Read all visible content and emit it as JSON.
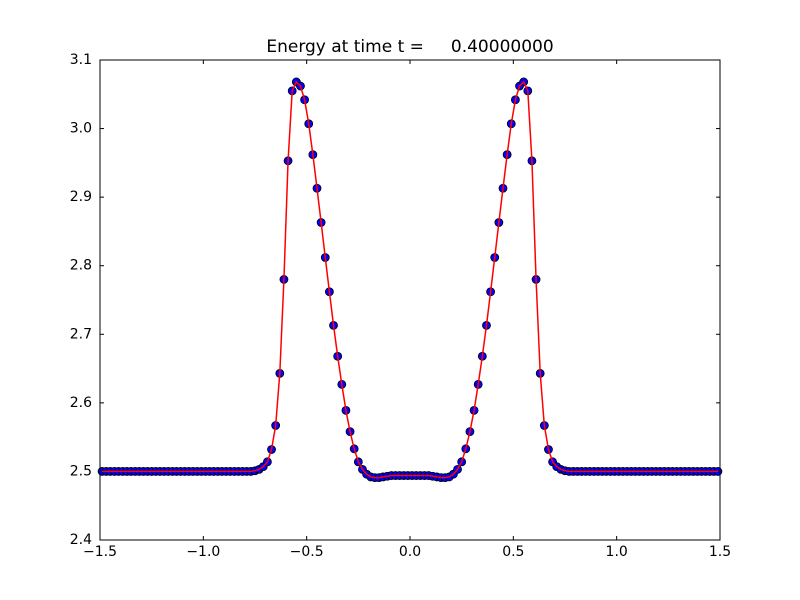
{
  "chart_data": {
    "type": "scatter",
    "title": "Energy at time t =     0.40000000",
    "x": [
      -1.49,
      -1.47,
      -1.45,
      -1.43,
      -1.41,
      -1.39,
      -1.37,
      -1.35,
      -1.33,
      -1.31,
      -1.29,
      -1.27,
      -1.25,
      -1.23,
      -1.21,
      -1.19,
      -1.17,
      -1.15,
      -1.13,
      -1.11,
      -1.09,
      -1.07,
      -1.05,
      -1.03,
      -1.01,
      -0.99,
      -0.97,
      -0.95,
      -0.93,
      -0.91,
      -0.89,
      -0.87,
      -0.85,
      -0.83,
      -0.81,
      -0.79,
      -0.77,
      -0.75,
      -0.73,
      -0.71,
      -0.69,
      -0.67,
      -0.65,
      -0.63,
      -0.61,
      -0.59,
      -0.57,
      -0.55,
      -0.53,
      -0.51,
      -0.49,
      -0.47,
      -0.45,
      -0.43,
      -0.41,
      -0.39,
      -0.37,
      -0.35,
      -0.33,
      -0.31,
      -0.29,
      -0.27,
      -0.25,
      -0.23,
      -0.21,
      -0.19,
      -0.17,
      -0.15,
      -0.13,
      -0.11,
      -0.09,
      -0.07,
      -0.05,
      -0.03,
      -0.01,
      0.01,
      0.03,
      0.05,
      0.07,
      0.09,
      0.11,
      0.13,
      0.15,
      0.17,
      0.19,
      0.21,
      0.23,
      0.25,
      0.27,
      0.29,
      0.31,
      0.33,
      0.35,
      0.37,
      0.39,
      0.41,
      0.43,
      0.45,
      0.47,
      0.49,
      0.51,
      0.53,
      0.55,
      0.57,
      0.59,
      0.61,
      0.63,
      0.65,
      0.67,
      0.69,
      0.71,
      0.73,
      0.75,
      0.77,
      0.79,
      0.81,
      0.83,
      0.85,
      0.87,
      0.89,
      0.91,
      0.93,
      0.95,
      0.97,
      0.99,
      1.01,
      1.03,
      1.05,
      1.07,
      1.09,
      1.11,
      1.13,
      1.15,
      1.17,
      1.19,
      1.21,
      1.23,
      1.25,
      1.27,
      1.29,
      1.31,
      1.33,
      1.35,
      1.37,
      1.39,
      1.41,
      1.43,
      1.45,
      1.47,
      1.49
    ],
    "series": [
      {
        "style": "marker",
        "color": "#0000ff",
        "edgecolor": "#000000",
        "values": [
          2.5,
          2.5,
          2.5,
          2.5,
          2.5,
          2.5,
          2.5,
          2.5,
          2.5,
          2.5,
          2.5,
          2.5,
          2.5,
          2.5,
          2.5,
          2.5,
          2.5,
          2.5,
          2.5,
          2.5,
          2.5,
          2.5,
          2.5,
          2.5,
          2.5,
          2.5,
          2.5,
          2.5,
          2.5,
          2.5,
          2.5,
          2.5,
          2.5,
          2.5,
          2.5,
          2.5,
          2.5,
          2.501,
          2.503,
          2.507,
          2.514,
          2.532,
          2.567,
          2.643,
          2.78,
          2.953,
          3.055,
          3.068,
          3.062,
          3.042,
          3.007,
          2.962,
          2.913,
          2.863,
          2.812,
          2.762,
          2.713,
          2.668,
          2.627,
          2.589,
          2.558,
          2.533,
          2.514,
          2.503,
          2.496,
          2.492,
          2.491,
          2.491,
          2.492,
          2.493,
          2.494,
          2.494,
          2.494,
          2.494,
          2.494,
          2.494,
          2.494,
          2.494,
          2.494,
          2.494,
          2.493,
          2.492,
          2.491,
          2.491,
          2.492,
          2.496,
          2.503,
          2.514,
          2.533,
          2.558,
          2.589,
          2.627,
          2.668,
          2.713,
          2.762,
          2.812,
          2.863,
          2.913,
          2.962,
          3.007,
          3.042,
          3.062,
          3.068,
          3.055,
          2.953,
          2.78,
          2.643,
          2.567,
          2.532,
          2.514,
          2.507,
          2.503,
          2.501,
          2.5,
          2.5,
          2.5,
          2.5,
          2.5,
          2.5,
          2.5,
          2.5,
          2.5,
          2.5,
          2.5,
          2.5,
          2.5,
          2.5,
          2.5,
          2.5,
          2.5,
          2.5,
          2.5,
          2.5,
          2.5,
          2.5,
          2.5,
          2.5,
          2.5,
          2.5,
          2.5,
          2.5,
          2.5,
          2.5,
          2.5,
          2.5,
          2.5,
          2.5,
          2.5,
          2.5,
          2.5
        ]
      },
      {
        "style": "line",
        "color": "#ff0000",
        "values": [
          2.5,
          2.5,
          2.5,
          2.5,
          2.5,
          2.5,
          2.5,
          2.5,
          2.5,
          2.5,
          2.5,
          2.5,
          2.5,
          2.5,
          2.5,
          2.5,
          2.5,
          2.5,
          2.5,
          2.5,
          2.5,
          2.5,
          2.5,
          2.5,
          2.5,
          2.5,
          2.5,
          2.5,
          2.5,
          2.5,
          2.5,
          2.5,
          2.5,
          2.5,
          2.5,
          2.5,
          2.5,
          2.501,
          2.503,
          2.507,
          2.514,
          2.532,
          2.567,
          2.643,
          2.78,
          2.953,
          3.055,
          3.068,
          3.062,
          3.042,
          3.007,
          2.962,
          2.913,
          2.863,
          2.812,
          2.762,
          2.713,
          2.668,
          2.627,
          2.589,
          2.558,
          2.533,
          2.514,
          2.503,
          2.496,
          2.492,
          2.491,
          2.491,
          2.492,
          2.493,
          2.494,
          2.494,
          2.494,
          2.494,
          2.494,
          2.494,
          2.494,
          2.494,
          2.494,
          2.494,
          2.493,
          2.492,
          2.491,
          2.491,
          2.492,
          2.496,
          2.503,
          2.514,
          2.533,
          2.558,
          2.589,
          2.627,
          2.668,
          2.713,
          2.762,
          2.812,
          2.863,
          2.913,
          2.962,
          3.007,
          3.042,
          3.062,
          3.068,
          3.055,
          2.953,
          2.78,
          2.643,
          2.567,
          2.532,
          2.514,
          2.507,
          2.503,
          2.501,
          2.5,
          2.5,
          2.5,
          2.5,
          2.5,
          2.5,
          2.5,
          2.5,
          2.5,
          2.5,
          2.5,
          2.5,
          2.5,
          2.5,
          2.5,
          2.5,
          2.5,
          2.5,
          2.5,
          2.5,
          2.5,
          2.5,
          2.5,
          2.5,
          2.5,
          2.5,
          2.5,
          2.5,
          2.5,
          2.5,
          2.5,
          2.5,
          2.5,
          2.5,
          2.5,
          2.5,
          2.5
        ]
      }
    ],
    "xlim": [
      -1.5,
      1.5
    ],
    "ylim": [
      2.4,
      3.1
    ],
    "xticks": [
      {
        "value": -1.5,
        "label": "−1.5"
      },
      {
        "value": -1.0,
        "label": "−1.0"
      },
      {
        "value": -0.5,
        "label": "−0.5"
      },
      {
        "value": 0.0,
        "label": "0.0"
      },
      0.5,
      {
        "value": 1.0,
        "label": "1.0"
      },
      1.5
    ],
    "yticks": [
      2.4,
      2.5,
      2.6,
      2.7,
      2.8,
      2.9,
      {
        "value": 3.0,
        "label": "3.0"
      },
      3.1
    ],
    "grid": false
  }
}
